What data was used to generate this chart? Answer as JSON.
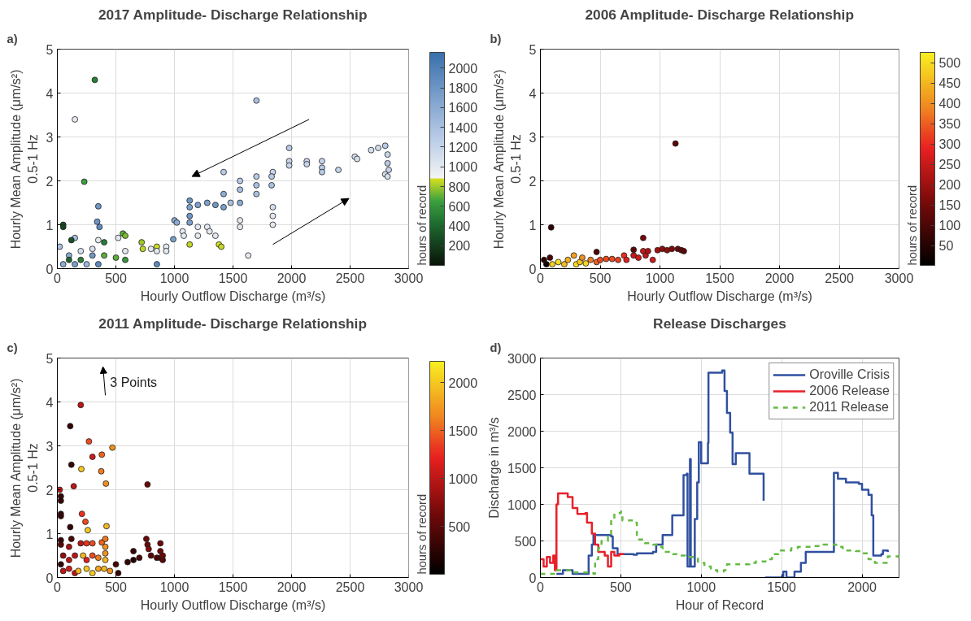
{
  "chart_data": [
    {
      "type": "scatter",
      "title": "2017 Amplitude- Discharge Relationship",
      "annotations": [
        "a)"
      ],
      "xlabel": "Hourly Outflow Discharge (m³/s)",
      "ylabel": "Hourly Mean Amplitude (μm/s²)\n0.5-1 Hz",
      "clabel": "hours of record",
      "xlim": [
        0,
        3000
      ],
      "ylim": [
        0,
        5
      ],
      "xticks": [
        0,
        500,
        1000,
        1500,
        2000,
        2500,
        3000
      ],
      "yticks": [
        0,
        1,
        2,
        3,
        4,
        5
      ],
      "clim": [
        1,
        2160
      ],
      "cticks": [
        200,
        400,
        600,
        800,
        1000,
        1200,
        1400,
        1600,
        1800,
        2000
      ],
      "grid": true,
      "marker": "circle",
      "x": [
        320,
        150,
        1700,
        230,
        50,
        50,
        350,
        340,
        360,
        20,
        100,
        150,
        120,
        200,
        300,
        350,
        400,
        300,
        400,
        500,
        560,
        580,
        520,
        580,
        580,
        50,
        150,
        250,
        350,
        100,
        200,
        720,
        730,
        800,
        850,
        850,
        850,
        930,
        930,
        1000,
        1020,
        990,
        1070,
        1080,
        1130,
        1130,
        1130,
        1130,
        1130,
        1200,
        1200,
        1200,
        1280,
        1300,
        1350,
        1380,
        1400,
        1280,
        1350,
        1420,
        1420,
        1420,
        1480,
        1560,
        1560,
        1560,
        1560,
        1560,
        1630,
        1700,
        1700,
        1700,
        1840,
        1830,
        1830,
        1840,
        1840,
        1840,
        1980,
        1980,
        1980,
        2130,
        2130,
        2260,
        2260,
        2260,
        2400,
        2540,
        2560,
        2680,
        2740,
        2800,
        2800,
        2820,
        2820,
        2830,
        2820
      ],
      "values": [
        4.3,
        3.4,
        3.83,
        1.98,
        1.0,
        0.95,
        1.42,
        1.07,
        0.95,
        0.5,
        0.3,
        0.7,
        0.65,
        0.4,
        0.45,
        0.65,
        0.6,
        0.3,
        0.3,
        0.25,
        0.8,
        0.75,
        0.7,
        0.4,
        0.2,
        0.1,
        0.1,
        0.1,
        0.1,
        0.2,
        0.2,
        0.6,
        0.45,
        0.45,
        0.5,
        0.4,
        0.1,
        0.5,
        0.4,
        1.1,
        1.05,
        0.67,
        0.85,
        0.75,
        0.55,
        1.55,
        1.4,
        1.2,
        1.05,
        0.95,
        0.75,
        1.45,
        0.95,
        0.85,
        0.75,
        0.55,
        0.5,
        1.5,
        1.45,
        1.7,
        1.4,
        2.2,
        1.5,
        2.0,
        1.8,
        1.5,
        1.1,
        0.95,
        0.3,
        2.1,
        1.9,
        1.7,
        2.2,
        2.1,
        1.9,
        1.4,
        1.2,
        1.0,
        2.75,
        2.45,
        2.35,
        2.45,
        2.38,
        2.45,
        2.3,
        2.2,
        2.25,
        2.55,
        2.5,
        2.7,
        2.75,
        2.8,
        2.15,
        2.6,
        2.4,
        2.25,
        2.1
      ],
      "cvalues": [
        500,
        1000,
        1400,
        650,
        300,
        250,
        1800,
        1800,
        1900,
        1400,
        1600,
        1400,
        300,
        1100,
        1100,
        1000,
        500,
        1800,
        700,
        700,
        700,
        750,
        1000,
        1000,
        600,
        1600,
        1700,
        1500,
        1900,
        400,
        500,
        800,
        850,
        1000,
        870,
        1000,
        1900,
        1000,
        1000,
        1600,
        1600,
        1700,
        1000,
        1000,
        850,
        1800,
        1700,
        1800,
        1700,
        1000,
        1000,
        1700,
        1000,
        1000,
        1000,
        880,
        860,
        1700,
        1800,
        1600,
        1700,
        1300,
        1400,
        1300,
        1400,
        1600,
        1000,
        1000,
        1000,
        1300,
        1400,
        1400,
        1200,
        1300,
        1400,
        1100,
        1000,
        1000,
        1300,
        1200,
        1200,
        1200,
        1200,
        1200,
        1300,
        1300,
        1200,
        1100,
        1100,
        1100,
        1100,
        1300,
        1100,
        1200,
        1300,
        1200,
        1100
      ]
    },
    {
      "type": "scatter",
      "title": "2006 Amplitude- Discharge Relationship",
      "annotations": [
        "b)"
      ],
      "xlabel": "Hourly Outflow Discharge (m³/s)",
      "ylabel": "Hourly Mean Amplitude (μm/s²)\n0.5-1 Hz",
      "clabel": "hours of record",
      "xlim": [
        0,
        3000
      ],
      "ylim": [
        0,
        5
      ],
      "xticks": [
        0,
        500,
        1000,
        1500,
        2000,
        2500,
        3000
      ],
      "yticks": [
        0,
        1,
        2,
        3,
        4,
        5
      ],
      "clim": [
        1,
        525
      ],
      "cticks": [
        50,
        100,
        150,
        200,
        250,
        300,
        350,
        400,
        450,
        500
      ],
      "grid": true,
      "marker": "circle",
      "x": [
        1130,
        90,
        860,
        470,
        780,
        30,
        50,
        80,
        100,
        150,
        200,
        230,
        280,
        300,
        330,
        350,
        380,
        420,
        470,
        500,
        550,
        600,
        650,
        700,
        720,
        780,
        820,
        860,
        880,
        900,
        940,
        980,
        1020,
        1060,
        1100,
        1150,
        1180,
        1200
      ],
      "values": [
        2.85,
        0.94,
        0.7,
        0.38,
        0.43,
        0.2,
        0.1,
        0.25,
        0.1,
        0.15,
        0.1,
        0.2,
        0.3,
        0.1,
        0.15,
        0.25,
        0.12,
        0.2,
        0.15,
        0.2,
        0.22,
        0.22,
        0.2,
        0.3,
        0.2,
        0.3,
        0.25,
        0.4,
        0.3,
        0.4,
        0.2,
        0.42,
        0.45,
        0.42,
        0.45,
        0.45,
        0.42,
        0.4
      ],
      "cvalues": [
        120,
        60,
        150,
        100,
        120,
        60,
        20,
        90,
        480,
        500,
        460,
        440,
        420,
        500,
        470,
        400,
        490,
        380,
        350,
        330,
        330,
        330,
        320,
        300,
        280,
        250,
        260,
        250,
        240,
        220,
        260,
        200,
        180,
        180,
        160,
        140,
        130,
        120
      ]
    },
    {
      "type": "scatter",
      "title": "2011 Amplitude- Discharge Relationship",
      "annotations": [
        "c)",
        "3 Points"
      ],
      "xlabel": "Hourly Outflow Discharge (m³/s)",
      "ylabel": "Hourly Mean Amplitude (μm/s²)\n0.5-1 Hz",
      "clabel": "hours of record",
      "xlim": [
        0,
        3000
      ],
      "ylim": [
        0,
        5
      ],
      "xticks": [
        0,
        500,
        1000,
        1500,
        2000,
        2500,
        3000
      ],
      "yticks": [
        0,
        1,
        2,
        3,
        4,
        5
      ],
      "clim": [
        5,
        2220
      ],
      "cticks": [
        500,
        1000,
        1500,
        2000
      ],
      "grid": true,
      "marker": "circle",
      "x": [
        200,
        110,
        270,
        300,
        380,
        470,
        120,
        205,
        375,
        415,
        140,
        770,
        20,
        30,
        30,
        30,
        30,
        210,
        240,
        260,
        420,
        110,
        120,
        30,
        30,
        100,
        200,
        250,
        300,
        380,
        410,
        410,
        760,
        770,
        780,
        880,
        880,
        880,
        50,
        100,
        150,
        220,
        250,
        300,
        350,
        410,
        410,
        30,
        50,
        100,
        150,
        180,
        250,
        300,
        350,
        400,
        450,
        500,
        520,
        600,
        650,
        650,
        700,
        800,
        850,
        900,
        900
      ],
      "values": [
        3.93,
        3.45,
        3.1,
        2.75,
        2.8,
        2.96,
        2.57,
        2.47,
        2.42,
        2.14,
        2.08,
        2.12,
        2.0,
        1.85,
        1.75,
        1.45,
        1.4,
        1.45,
        1.27,
        1.08,
        1.17,
        1.15,
        0.88,
        0.85,
        0.75,
        0.7,
        0.78,
        0.78,
        0.78,
        0.8,
        0.88,
        0.7,
        0.88,
        0.75,
        0.65,
        0.78,
        0.6,
        0.45,
        0.5,
        0.4,
        0.5,
        0.5,
        0.4,
        0.5,
        0.45,
        0.55,
        0.4,
        0.3,
        0.15,
        0.2,
        0.1,
        0.15,
        0.2,
        0.1,
        0.2,
        0.2,
        0.15,
        0.3,
        0.1,
        0.35,
        0.4,
        0.6,
        0.45,
        0.5,
        0.45,
        0.4,
        0.5
      ],
      "cvalues": [
        1000,
        300,
        1400,
        1100,
        1500,
        1700,
        300,
        2000,
        1600,
        1700,
        1000,
        600,
        1000,
        300,
        300,
        300,
        300,
        1300,
        1400,
        2000,
        1900,
        300,
        400,
        300,
        500,
        900,
        1000,
        1300,
        1400,
        1500,
        1600,
        1700,
        600,
        600,
        700,
        600,
        600,
        600,
        800,
        1000,
        1000,
        1900,
        1200,
        1400,
        1600,
        1700,
        1900,
        300,
        1000,
        1100,
        1000,
        1900,
        2000,
        2000,
        1800,
        1900,
        1700,
        400,
        300,
        300,
        200,
        300,
        400,
        500,
        400,
        500,
        600
      ]
    },
    {
      "type": "step",
      "title": "Release Discharges",
      "annotations": [
        "d)"
      ],
      "xlabel": "Hour of Record",
      "ylabel": "Discharge in m³/s",
      "xlim": [
        0,
        2230
      ],
      "ylim": [
        0,
        3000
      ],
      "xticks": [
        0,
        500,
        1000,
        1500,
        2000
      ],
      "yticks": [
        0,
        500,
        1000,
        1500,
        2000,
        2500,
        3000
      ],
      "grid": true,
      "legend": "top right",
      "series": [
        {
          "name": "Oroville Crisis",
          "color": "#3050a0",
          "line_style": "solid",
          "x": [
            100,
            140,
            200,
            290,
            300,
            320,
            330,
            440,
            450,
            480,
            580,
            600,
            700,
            720,
            760,
            820,
            880,
            890,
            910,
            915,
            930,
            935,
            950,
            960,
            975,
            985,
            1000,
            1040,
            1042,
            1045,
            1130,
            1145,
            1160,
            1180,
            1195,
            1215,
            1285,
            1300,
            1388,
            1392,
            1398,
            1500,
            1510,
            1530,
            1560,
            1580,
            1620,
            1650,
            1820,
            1825,
            1850,
            1900,
            1980,
            2000,
            2040,
            2060,
            2070,
            2120,
            2130,
            2160
          ],
          "values": [
            50,
            100,
            50,
            50,
            300,
            450,
            580,
            560,
            400,
            320,
            310,
            330,
            350,
            450,
            580,
            850,
            850,
            1400,
            1420,
            150,
            1620,
            150,
            150,
            800,
            1300,
            1850,
            1560,
            1560,
            1840,
            2800,
            2830,
            2550,
            2250,
            1980,
            1550,
            1700,
            1700,
            1420,
            1050,
            null,
            0,
            0,
            80,
            0,
            0,
            80,
            200,
            350,
            350,
            1430,
            1350,
            1300,
            1280,
            1200,
            1130,
            850,
            300,
            320,
            370,
            350
          ]
        },
        {
          "name": "2006 Release",
          "color": "#e8202a",
          "line_style": "solid",
          "x": [
            0,
            20,
            40,
            60,
            80,
            90,
            100,
            110,
            150,
            170,
            200,
            230,
            280,
            290,
            320,
            340,
            360,
            400,
            420,
            440,
            460,
            490,
            520
          ],
          "values": [
            250,
            150,
            280,
            200,
            300,
            100,
            1000,
            1150,
            1150,
            1100,
            950,
            870,
            880,
            750,
            600,
            450,
            350,
            300,
            150,
            350,
            300,
            320,
            320
          ]
        },
        {
          "name": "2011 Release",
          "color": "#66bb44",
          "line_style": "dashed",
          "x": [
            0,
            100,
            200,
            300,
            330,
            340,
            360,
            380,
            420,
            440,
            460,
            500,
            510,
            590,
            600,
            650,
            700,
            740,
            760,
            800,
            860,
            900,
            960,
            980,
            1020,
            1060,
            1100,
            1140,
            1160,
            1240,
            1300,
            1340,
            1400,
            1440,
            1480,
            1560,
            1600,
            1700,
            1760,
            1840,
            1880,
            1960,
            2000,
            2040,
            2080,
            2160,
            2230
          ],
          "values": [
            50,
            100,
            70,
            60,
            50,
            250,
            400,
            500,
            560,
            800,
            880,
            900,
            780,
            750,
            520,
            470,
            450,
            420,
            350,
            320,
            300,
            280,
            280,
            200,
            150,
            100,
            80,
            100,
            180,
            180,
            200,
            220,
            250,
            320,
            370,
            400,
            420,
            430,
            450,
            420,
            370,
            360,
            330,
            250,
            200,
            290,
            240
          ]
        }
      ]
    }
  ]
}
